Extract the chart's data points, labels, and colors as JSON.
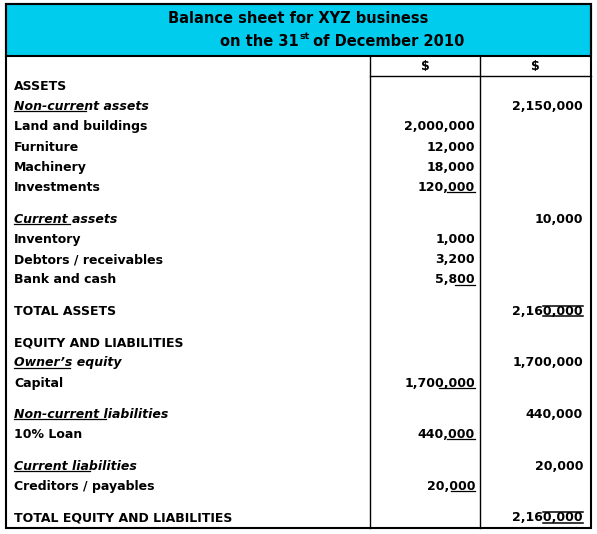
{
  "title_line1": "Balance sheet for XYZ business",
  "title_line2_pre": "on the 31",
  "title_line2_sup": "st",
  "title_line2_post": " of December 2010",
  "header_bg": "#00CCEE",
  "table_bg": "#FFFFFF",
  "border_color": "#000000",
  "figsize": [
    5.97,
    5.34
  ],
  "dpi": 100,
  "fs": 9.0,
  "fs_title": 10.5,
  "rows": [
    {
      "type": "colheader",
      "label": "",
      "col1": "$",
      "col2": "$"
    },
    {
      "type": "section",
      "label": "ASSETS",
      "col1": "",
      "col2": ""
    },
    {
      "type": "subhdr",
      "label": "Non-current assets",
      "col1": "",
      "col2": "2,150,000"
    },
    {
      "type": "item",
      "label": "Land and buildings",
      "col1": "2,000,000",
      "col2": ""
    },
    {
      "type": "item",
      "label": "Furniture",
      "col1": "12,000",
      "col2": ""
    },
    {
      "type": "item",
      "label": "Machinery",
      "col1": "18,000",
      "col2": ""
    },
    {
      "type": "item_ul",
      "label": "Investments",
      "col1": "120,000",
      "col2": ""
    },
    {
      "type": "blank",
      "label": "",
      "col1": "",
      "col2": ""
    },
    {
      "type": "subhdr",
      "label": "Current assets",
      "col1": "",
      "col2": "10,000"
    },
    {
      "type": "item",
      "label": "Inventory",
      "col1": "1,000",
      "col2": ""
    },
    {
      "type": "item",
      "label": "Debtors / receivables",
      "col1": "3,200",
      "col2": ""
    },
    {
      "type": "item_ul",
      "label": "Bank and cash",
      "col1": "5,800",
      "col2": ""
    },
    {
      "type": "blank",
      "label": "",
      "col1": "",
      "col2": ""
    },
    {
      "type": "total",
      "label": "TOTAL ASSETS",
      "col1": "",
      "col2": "2,160,000"
    },
    {
      "type": "blank",
      "label": "",
      "col1": "",
      "col2": ""
    },
    {
      "type": "section",
      "label": "EQUITY AND LIABILITIES",
      "col1": "",
      "col2": ""
    },
    {
      "type": "subhdr",
      "label": "Owner’s equity",
      "col1": "",
      "col2": "1,700,000"
    },
    {
      "type": "item_ul",
      "label": "Capital",
      "col1": "1,700,000",
      "col2": ""
    },
    {
      "type": "blank",
      "label": "",
      "col1": "",
      "col2": ""
    },
    {
      "type": "subhdr",
      "label": "Non-current liabilities",
      "col1": "",
      "col2": "440,000"
    },
    {
      "type": "item_ul",
      "label": "10% Loan",
      "col1": "440,000",
      "col2": ""
    },
    {
      "type": "blank",
      "label": "",
      "col1": "",
      "col2": ""
    },
    {
      "type": "subhdr",
      "label": "Current liabilities",
      "col1": "",
      "col2": "20,000"
    },
    {
      "type": "item_ul",
      "label": "Creditors / payables",
      "col1": "20,000",
      "col2": ""
    },
    {
      "type": "blank",
      "label": "",
      "col1": "",
      "col2": ""
    },
    {
      "type": "total",
      "label": "TOTAL EQUITY AND LIABILITIES",
      "col1": "",
      "col2": "2,160,000"
    }
  ]
}
